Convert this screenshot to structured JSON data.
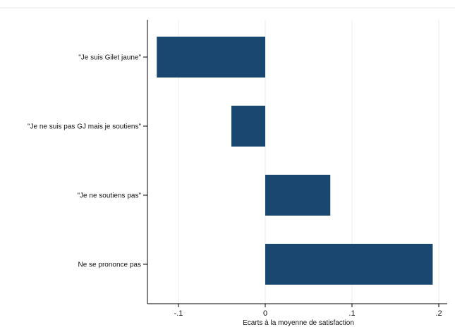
{
  "chart_data": {
    "type": "bar",
    "orientation": "horizontal",
    "categories": [
      "\"Je suis Gilet jaune\"",
      "\"Je ne suis pas GJ mais je soutiens\"",
      "\"Je ne soutiens pas\"",
      "Ne se prononce pas"
    ],
    "values": [
      -0.125,
      -0.039,
      0.075,
      0.193
    ],
    "xlabel": "Ecarts à la moyenne de satisfaction",
    "ylabel": "",
    "xlim": [
      -0.135,
      0.21
    ],
    "xticks": [
      -0.1,
      0,
      0.1,
      0.2
    ],
    "xtick_labels": [
      "-.1",
      "0",
      ".1",
      ".2"
    ],
    "grid": "vertical",
    "bar_color": "#1a476f"
  }
}
